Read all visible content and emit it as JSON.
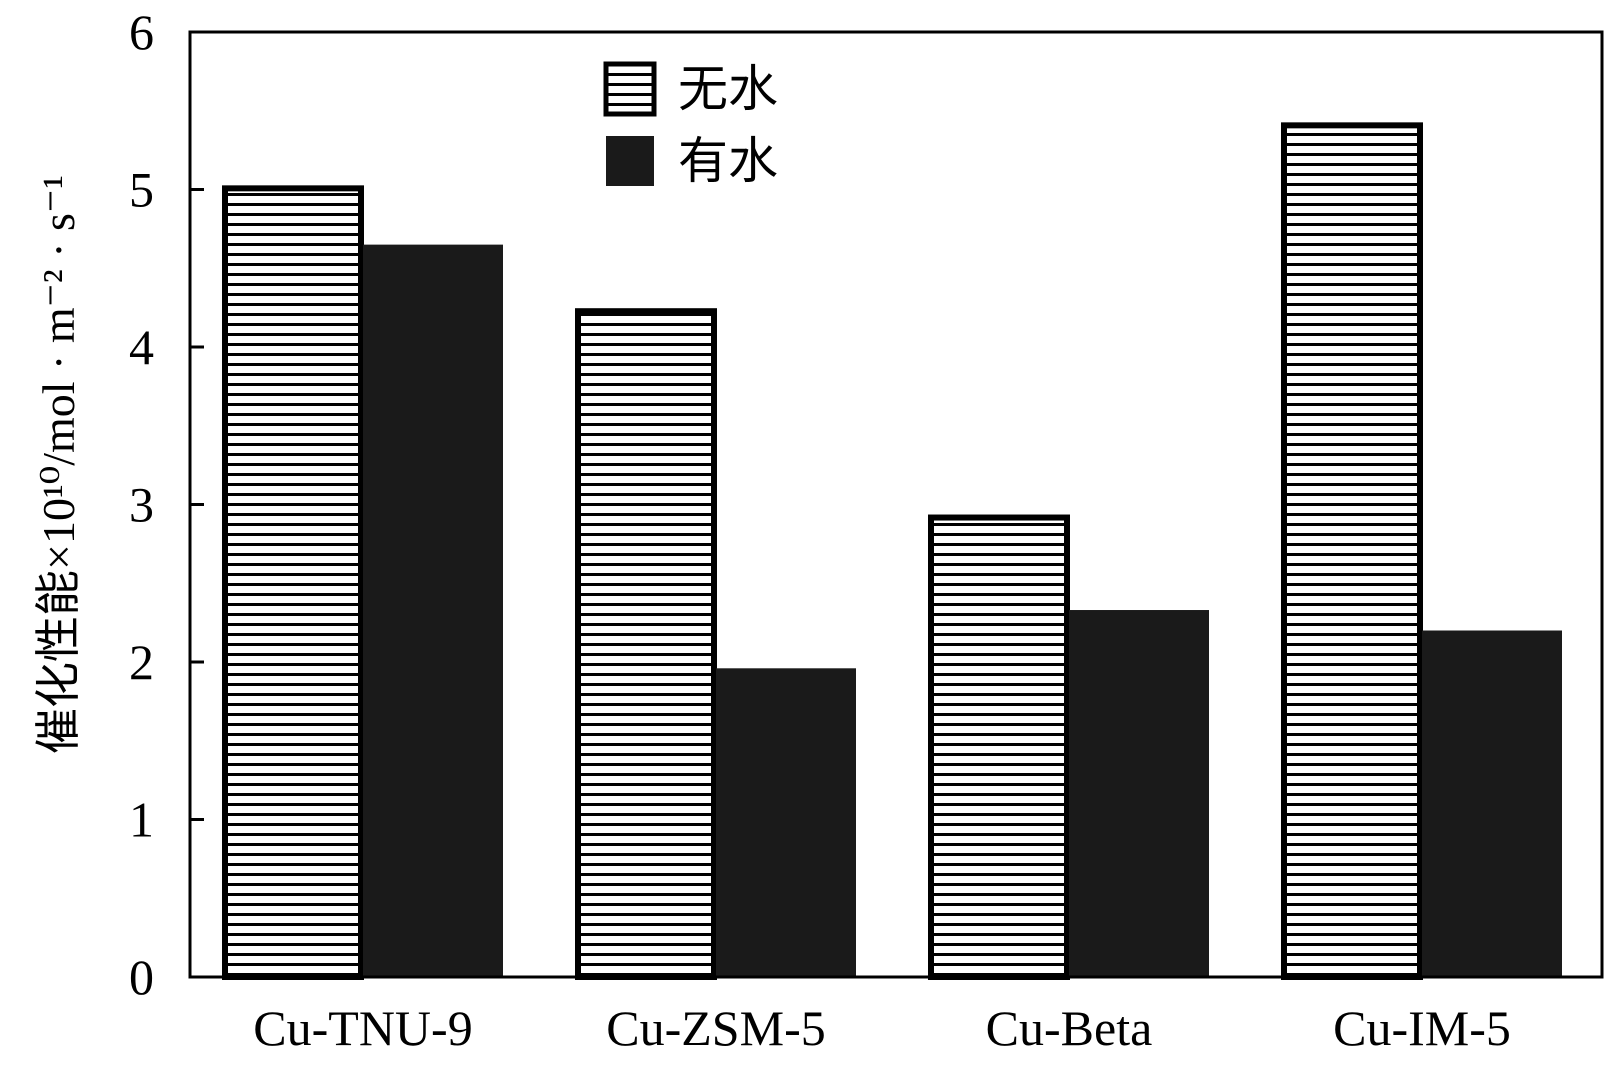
{
  "chart_data": {
    "type": "bar",
    "categories": [
      "Cu-TNU-9",
      "Cu-ZSM-5",
      "Cu-Beta",
      "Cu-IM-5"
    ],
    "series": [
      {
        "name": "无水",
        "values": [
          5.02,
          4.24,
          2.93,
          5.42
        ],
        "pattern": "horizontal-stripes"
      },
      {
        "name": "有水",
        "values": [
          4.65,
          1.96,
          2.33,
          2.2
        ],
        "pattern": "solid"
      }
    ],
    "title": "",
    "xlabel": "",
    "ylabel": "催化性能×10¹⁰/mol · m⁻² · s⁻¹",
    "ylim": [
      0,
      6
    ],
    "yticks": [
      0,
      1,
      2,
      3,
      4,
      5,
      6
    ],
    "grid": false,
    "legend": "top-center",
    "colors": {
      "solid": "#1a1a1a",
      "stripe": "#000000",
      "background": "#ffffff"
    }
  }
}
